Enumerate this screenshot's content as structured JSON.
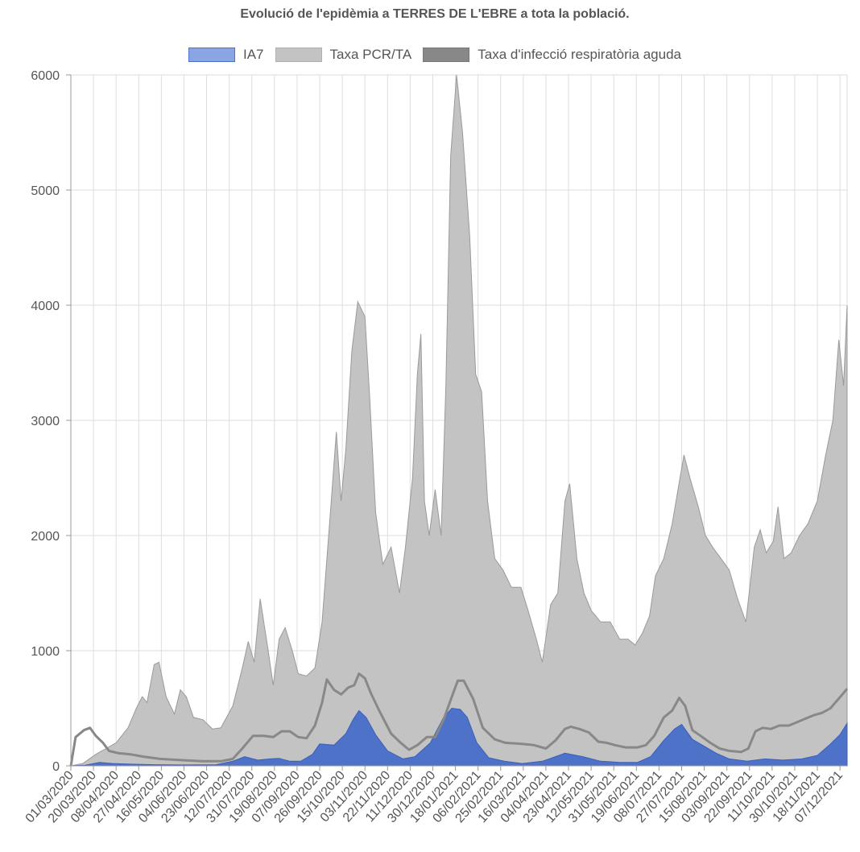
{
  "chart_data": {
    "type": "area",
    "title": "Evolució de l'epidèmia a TERRES DE L'EBRE a tota la població.",
    "legend_position": "top",
    "grid": true,
    "ylim": [
      0,
      6000
    ],
    "yticks": [
      0,
      1000,
      2000,
      3000,
      4000,
      5000,
      6000
    ],
    "x_range": [
      "01/03/2020",
      "13/12/2021"
    ],
    "xticks": [
      "01/03/2020",
      "20/03/2020",
      "08/04/2020",
      "27/04/2020",
      "16/05/2020",
      "04/06/2020",
      "23/06/2020",
      "12/07/2020",
      "31/07/2020",
      "19/08/2020",
      "07/09/2020",
      "26/09/2020",
      "15/10/2020",
      "03/11/2020",
      "22/11/2020",
      "11/12/2020",
      "30/12/2020",
      "18/01/2021",
      "06/02/2021",
      "25/02/2021",
      "16/03/2021",
      "04/04/2021",
      "23/04/2021",
      "12/05/2021",
      "31/05/2021",
      "19/06/2021",
      "08/07/2021",
      "27/07/2021",
      "15/08/2021",
      "03/09/2021",
      "22/09/2021",
      "11/10/2021",
      "30/10/2021",
      "18/11/2021",
      "07/12/2021"
    ],
    "series": [
      {
        "name": "IA7",
        "color": "#4f72c9",
        "points": [
          [
            "01/03/2020",
            0
          ],
          [
            "13/03/2020",
            5
          ],
          [
            "25/03/2020",
            30
          ],
          [
            "05/04/2020",
            20
          ],
          [
            "20/04/2020",
            15
          ],
          [
            "10/05/2020",
            10
          ],
          [
            "01/06/2020",
            8
          ],
          [
            "01/07/2020",
            10
          ],
          [
            "15/07/2020",
            40
          ],
          [
            "25/07/2020",
            80
          ],
          [
            "05/08/2020",
            50
          ],
          [
            "15/08/2020",
            60
          ],
          [
            "23/08/2020",
            65
          ],
          [
            "01/09/2020",
            40
          ],
          [
            "10/09/2020",
            40
          ],
          [
            "20/09/2020",
            100
          ],
          [
            "26/09/2020",
            190
          ],
          [
            "08/10/2020",
            180
          ],
          [
            "18/10/2020",
            280
          ],
          [
            "24/10/2020",
            400
          ],
          [
            "29/10/2020",
            480
          ],
          [
            "04/11/2020",
            420
          ],
          [
            "12/11/2020",
            270
          ],
          [
            "22/11/2020",
            130
          ],
          [
            "05/12/2020",
            60
          ],
          [
            "15/12/2020",
            80
          ],
          [
            "28/12/2020",
            200
          ],
          [
            "08/01/2021",
            420
          ],
          [
            "15/01/2021",
            500
          ],
          [
            "22/01/2021",
            490
          ],
          [
            "28/01/2021",
            420
          ],
          [
            "05/02/2021",
            200
          ],
          [
            "15/02/2021",
            70
          ],
          [
            "28/02/2021",
            40
          ],
          [
            "15/03/2021",
            20
          ],
          [
            "01/04/2021",
            40
          ],
          [
            "12/04/2021",
            80
          ],
          [
            "20/04/2021",
            110
          ],
          [
            "05/05/2021",
            80
          ],
          [
            "20/05/2021",
            40
          ],
          [
            "05/06/2021",
            30
          ],
          [
            "20/06/2021",
            30
          ],
          [
            "01/07/2021",
            80
          ],
          [
            "12/07/2021",
            220
          ],
          [
            "21/07/2021",
            320
          ],
          [
            "27/07/2021",
            360
          ],
          [
            "05/08/2021",
            230
          ],
          [
            "15/08/2021",
            170
          ],
          [
            "25/08/2021",
            110
          ],
          [
            "05/09/2021",
            60
          ],
          [
            "20/09/2021",
            40
          ],
          [
            "05/10/2021",
            60
          ],
          [
            "20/10/2021",
            50
          ],
          [
            "05/11/2021",
            60
          ],
          [
            "18/11/2021",
            90
          ],
          [
            "28/11/2021",
            180
          ],
          [
            "07/12/2021",
            270
          ],
          [
            "13/12/2021",
            370
          ]
        ]
      },
      {
        "name": "Taxa PCR/TA",
        "color": "#c3c3c3",
        "points": [
          [
            "01/03/2020",
            0
          ],
          [
            "11/03/2020",
            20
          ],
          [
            "22/03/2020",
            100
          ],
          [
            "08/04/2020",
            200
          ],
          [
            "18/04/2020",
            330
          ],
          [
            "25/04/2020",
            500
          ],
          [
            "30/04/2020",
            600
          ],
          [
            "04/05/2020",
            550
          ],
          [
            "10/05/2020",
            880
          ],
          [
            "14/05/2020",
            900
          ],
          [
            "20/05/2020",
            600
          ],
          [
            "27/05/2020",
            450
          ],
          [
            "01/06/2020",
            660
          ],
          [
            "06/06/2020",
            600
          ],
          [
            "12/06/2020",
            420
          ],
          [
            "20/06/2020",
            400
          ],
          [
            "28/06/2020",
            320
          ],
          [
            "05/07/2020",
            330
          ],
          [
            "15/07/2020",
            520
          ],
          [
            "23/07/2020",
            850
          ],
          [
            "28/07/2020",
            1080
          ],
          [
            "02/08/2020",
            900
          ],
          [
            "07/08/2020",
            1450
          ],
          [
            "13/08/2020",
            1050
          ],
          [
            "18/08/2020",
            700
          ],
          [
            "23/08/2020",
            1100
          ],
          [
            "28/08/2020",
            1200
          ],
          [
            "03/09/2020",
            1000
          ],
          [
            "08/09/2020",
            800
          ],
          [
            "15/09/2020",
            780
          ],
          [
            "22/09/2020",
            850
          ],
          [
            "28/09/2020",
            1250
          ],
          [
            "05/10/2020",
            2200
          ],
          [
            "10/10/2020",
            2900
          ],
          [
            "14/10/2020",
            2300
          ],
          [
            "18/10/2020",
            2750
          ],
          [
            "23/10/2020",
            3600
          ],
          [
            "28/10/2020",
            4030
          ],
          [
            "03/11/2020",
            3900
          ],
          [
            "07/11/2020",
            3200
          ],
          [
            "12/11/2020",
            2200
          ],
          [
            "18/11/2020",
            1750
          ],
          [
            "25/11/2020",
            1900
          ],
          [
            "02/12/2020",
            1500
          ],
          [
            "07/12/2020",
            1900
          ],
          [
            "13/12/2020",
            2500
          ],
          [
            "17/12/2020",
            3400
          ],
          [
            "20/12/2020",
            3750
          ],
          [
            "23/12/2020",
            2300
          ],
          [
            "27/12/2020",
            2000
          ],
          [
            "01/01/2021",
            2400
          ],
          [
            "06/01/2021",
            2000
          ],
          [
            "10/01/2021",
            3300
          ],
          [
            "14/01/2021",
            5300
          ],
          [
            "19/01/2021",
            6000
          ],
          [
            "24/01/2021",
            5500
          ],
          [
            "30/01/2021",
            4600
          ],
          [
            "04/02/2021",
            3400
          ],
          [
            "09/02/2021",
            3250
          ],
          [
            "14/02/2021",
            2300
          ],
          [
            "20/02/2021",
            1800
          ],
          [
            "27/02/2021",
            1700
          ],
          [
            "06/03/2021",
            1550
          ],
          [
            "14/03/2021",
            1550
          ],
          [
            "20/03/2021",
            1350
          ],
          [
            "27/03/2021",
            1100
          ],
          [
            "01/04/2021",
            900
          ],
          [
            "08/04/2021",
            1400
          ],
          [
            "14/04/2021",
            1500
          ],
          [
            "20/04/2021",
            2300
          ],
          [
            "24/04/2021",
            2450
          ],
          [
            "30/04/2021",
            1800
          ],
          [
            "06/05/2021",
            1500
          ],
          [
            "12/05/2021",
            1350
          ],
          [
            "20/05/2021",
            1250
          ],
          [
            "28/05/2021",
            1250
          ],
          [
            "05/06/2021",
            1100
          ],
          [
            "12/06/2021",
            1100
          ],
          [
            "18/06/2021",
            1050
          ],
          [
            "24/06/2021",
            1150
          ],
          [
            "30/06/2021",
            1300
          ],
          [
            "05/07/2021",
            1650
          ],
          [
            "12/07/2021",
            1800
          ],
          [
            "19/07/2021",
            2100
          ],
          [
            "24/07/2021",
            2400
          ],
          [
            "29/07/2021",
            2700
          ],
          [
            "03/08/2021",
            2500
          ],
          [
            "10/08/2021",
            2250
          ],
          [
            "16/08/2021",
            2000
          ],
          [
            "22/08/2021",
            1900
          ],
          [
            "29/08/2021",
            1800
          ],
          [
            "05/09/2021",
            1700
          ],
          [
            "12/09/2021",
            1450
          ],
          [
            "19/09/2021",
            1250
          ],
          [
            "26/09/2021",
            1900
          ],
          [
            "01/10/2021",
            2050
          ],
          [
            "06/10/2021",
            1850
          ],
          [
            "12/10/2021",
            1950
          ],
          [
            "16/10/2021",
            2250
          ],
          [
            "21/10/2021",
            1800
          ],
          [
            "27/10/2021",
            1850
          ],
          [
            "03/11/2021",
            2000
          ],
          [
            "10/11/2021",
            2100
          ],
          [
            "18/11/2021",
            2300
          ],
          [
            "25/11/2021",
            2700
          ],
          [
            "01/12/2021",
            3000
          ],
          [
            "06/12/2021",
            3700
          ],
          [
            "10/12/2021",
            3300
          ],
          [
            "13/12/2021",
            4000
          ]
        ]
      },
      {
        "name": "Taxa d'infecció respiratòria aguda",
        "color": "#888888",
        "points": [
          [
            "01/03/2020",
            0
          ],
          [
            "05/03/2020",
            250
          ],
          [
            "12/03/2020",
            310
          ],
          [
            "17/03/2020",
            330
          ],
          [
            "22/03/2020",
            260
          ],
          [
            "28/03/2020",
            200
          ],
          [
            "02/04/2020",
            130
          ],
          [
            "10/04/2020",
            110
          ],
          [
            "20/04/2020",
            100
          ],
          [
            "01/05/2020",
            80
          ],
          [
            "15/05/2020",
            60
          ],
          [
            "01/06/2020",
            50
          ],
          [
            "20/06/2020",
            40
          ],
          [
            "05/07/2020",
            40
          ],
          [
            "15/07/2020",
            60
          ],
          [
            "23/07/2020",
            150
          ],
          [
            "01/08/2020",
            260
          ],
          [
            "10/08/2020",
            260
          ],
          [
            "18/08/2020",
            250
          ],
          [
            "25/08/2020",
            300
          ],
          [
            "01/09/2020",
            300
          ],
          [
            "08/09/2020",
            250
          ],
          [
            "15/09/2020",
            240
          ],
          [
            "22/09/2020",
            350
          ],
          [
            "28/09/2020",
            550
          ],
          [
            "02/10/2020",
            750
          ],
          [
            "08/10/2020",
            660
          ],
          [
            "14/10/2020",
            620
          ],
          [
            "20/10/2020",
            680
          ],
          [
            "25/10/2020",
            700
          ],
          [
            "29/10/2020",
            800
          ],
          [
            "03/11/2020",
            760
          ],
          [
            "08/11/2020",
            630
          ],
          [
            "15/11/2020",
            480
          ],
          [
            "25/11/2020",
            280
          ],
          [
            "03/12/2020",
            200
          ],
          [
            "10/12/2020",
            140
          ],
          [
            "17/12/2020",
            180
          ],
          [
            "25/12/2020",
            250
          ],
          [
            "01/01/2021",
            250
          ],
          [
            "08/01/2021",
            400
          ],
          [
            "15/01/2021",
            600
          ],
          [
            "20/01/2021",
            740
          ],
          [
            "25/01/2021",
            740
          ],
          [
            "02/02/2021",
            580
          ],
          [
            "10/02/2021",
            330
          ],
          [
            "20/02/2021",
            230
          ],
          [
            "01/03/2021",
            200
          ],
          [
            "15/03/2021",
            190
          ],
          [
            "25/03/2021",
            180
          ],
          [
            "04/04/2021",
            150
          ],
          [
            "12/04/2021",
            220
          ],
          [
            "20/04/2021",
            320
          ],
          [
            "25/04/2021",
            340
          ],
          [
            "02/05/2021",
            320
          ],
          [
            "10/05/2021",
            290
          ],
          [
            "18/05/2021",
            210
          ],
          [
            "25/05/2021",
            200
          ],
          [
            "01/06/2021",
            180
          ],
          [
            "10/06/2021",
            160
          ],
          [
            "20/06/2021",
            160
          ],
          [
            "27/06/2021",
            180
          ],
          [
            "04/07/2021",
            260
          ],
          [
            "12/07/2021",
            420
          ],
          [
            "19/07/2021",
            480
          ],
          [
            "25/07/2021",
            590
          ],
          [
            "30/07/2021",
            520
          ],
          [
            "05/08/2021",
            310
          ],
          [
            "12/08/2021",
            260
          ],
          [
            "20/08/2021",
            200
          ],
          [
            "28/08/2021",
            150
          ],
          [
            "05/09/2021",
            130
          ],
          [
            "15/09/2021",
            120
          ],
          [
            "21/09/2021",
            150
          ],
          [
            "27/09/2021",
            300
          ],
          [
            "03/10/2021",
            330
          ],
          [
            "10/10/2021",
            320
          ],
          [
            "17/10/2021",
            350
          ],
          [
            "25/10/2021",
            350
          ],
          [
            "01/11/2021",
            380
          ],
          [
            "08/11/2021",
            410
          ],
          [
            "15/11/2021",
            440
          ],
          [
            "22/11/2021",
            460
          ],
          [
            "29/11/2021",
            500
          ],
          [
            "04/12/2021",
            560
          ],
          [
            "09/12/2021",
            620
          ],
          [
            "13/12/2021",
            670
          ]
        ]
      }
    ]
  }
}
